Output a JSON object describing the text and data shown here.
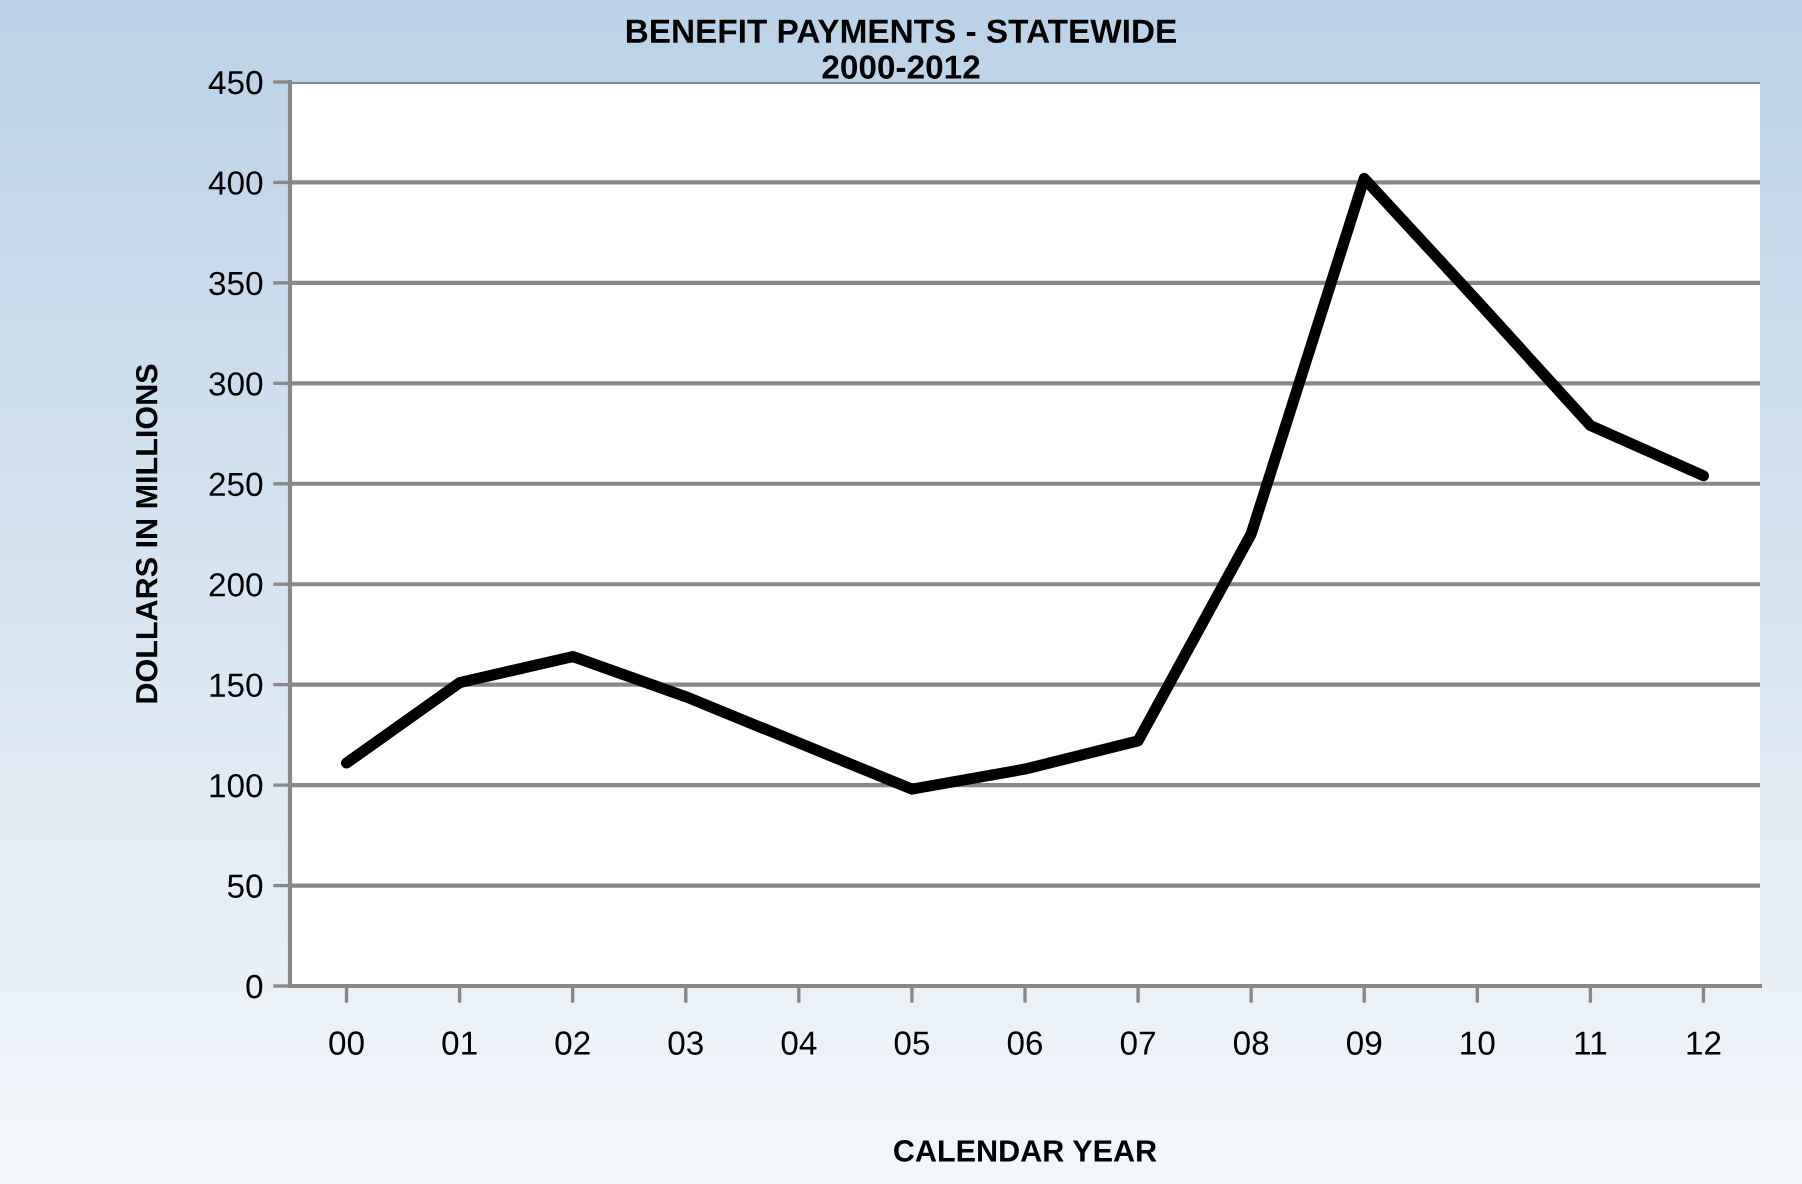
{
  "chart_data": {
    "type": "line",
    "title": "BENEFIT PAYMENTS - STATEWIDE\n2000-2012",
    "xlabel": "CALENDAR YEAR",
    "ylabel": "DOLLARS IN MILLIONS",
    "categories": [
      "00",
      "01",
      "02",
      "03",
      "04",
      "05",
      "06",
      "07",
      "08",
      "09",
      "10",
      "11",
      "12"
    ],
    "series": [
      {
        "color": "#000000",
        "values": [
          111,
          151,
          164,
          144,
          121,
          98,
          108,
          122,
          225,
          402,
          341,
          279,
          254
        ]
      }
    ],
    "ylim": [
      0,
      450
    ],
    "yticks": [
      0,
      50,
      100,
      150,
      200,
      250,
      300,
      350,
      400,
      450
    ],
    "grid": "y",
    "marker": "none",
    "line_style": "solid"
  }
}
